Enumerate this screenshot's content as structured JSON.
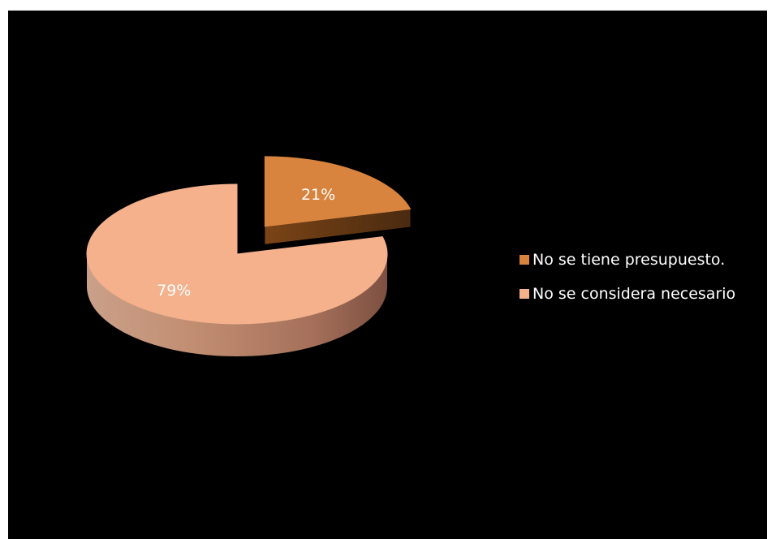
{
  "chart_data": {
    "type": "pie",
    "title": "",
    "categories": [
      "No se tiene presupuesto.",
      "No se considera necesario"
    ],
    "values": [
      21,
      79
    ],
    "labels": [
      "21%",
      "79%"
    ],
    "colors": [
      "#D9843E",
      "#F4B18C"
    ],
    "legend_position": "right",
    "style": "3d-exploded"
  }
}
